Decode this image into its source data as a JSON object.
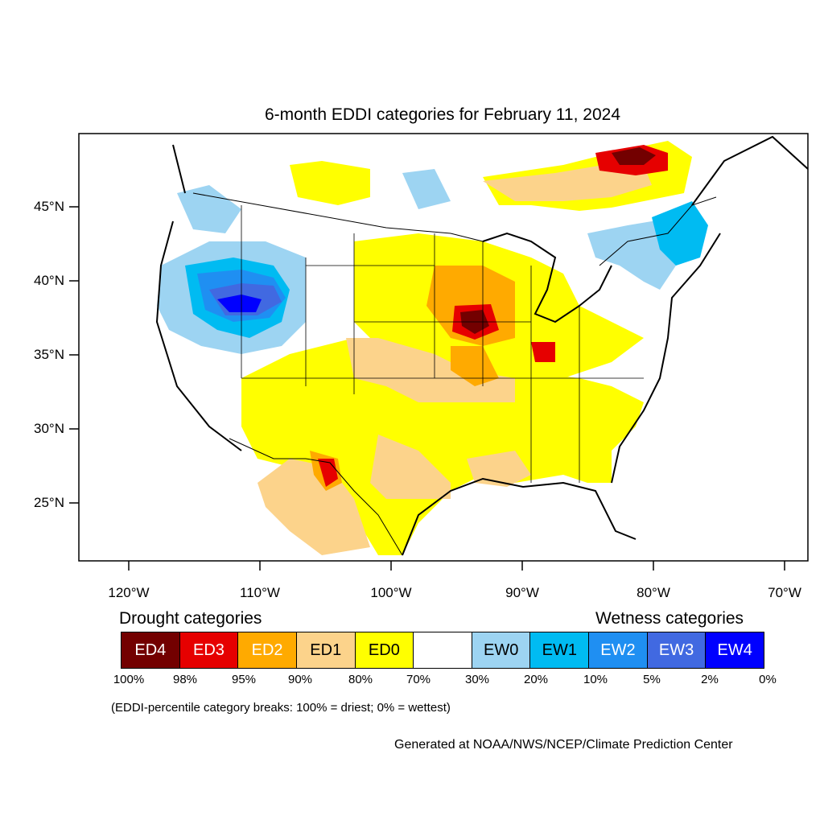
{
  "title": "6-month EDDI categories for February 11, 2024",
  "y_ticks": [
    "45°N",
    "40°N",
    "35°N",
    "30°N",
    "25°N"
  ],
  "x_ticks": [
    "120°W",
    "110°W",
    "100°W",
    "90°W",
    "80°W",
    "70°W"
  ],
  "legend": {
    "drought_heading": "Drought categories",
    "wetness_heading": "Wetness categories",
    "categories": [
      {
        "label": "ED4",
        "color": "#730000",
        "text_color": "#ffffff"
      },
      {
        "label": "ED3",
        "color": "#e60000",
        "text_color": "#ffffff"
      },
      {
        "label": "ED2",
        "color": "#ffaa00",
        "text_color": "#ffffff"
      },
      {
        "label": "ED1",
        "color": "#fcd38b",
        "text_color": "#000000"
      },
      {
        "label": "ED0",
        "color": "#ffff00",
        "text_color": "#000000"
      },
      {
        "label": "",
        "color": "#ffffff",
        "text_color": "#000000"
      },
      {
        "label": "EW0",
        "color": "#9dd4f2",
        "text_color": "#000000"
      },
      {
        "label": "EW1",
        "color": "#00bbf2",
        "text_color": "#000000"
      },
      {
        "label": "EW2",
        "color": "#1f8ff2",
        "text_color": "#ffffff"
      },
      {
        "label": "EW3",
        "color": "#4169e1",
        "text_color": "#ffffff"
      },
      {
        "label": "EW4",
        "color": "#0000ff",
        "text_color": "#ffffff"
      }
    ],
    "breaks": [
      "100%",
      "98%",
      "95%",
      "90%",
      "80%",
      "70%",
      "30%",
      "20%",
      "10%",
      "5%",
      "2%",
      "0%"
    ],
    "note": "(EDDI-percentile category breaks: 100% = driest; 0% = wettest)"
  },
  "credit": "Generated at NOAA/NWS/NCEP/Climate Prediction Center"
}
